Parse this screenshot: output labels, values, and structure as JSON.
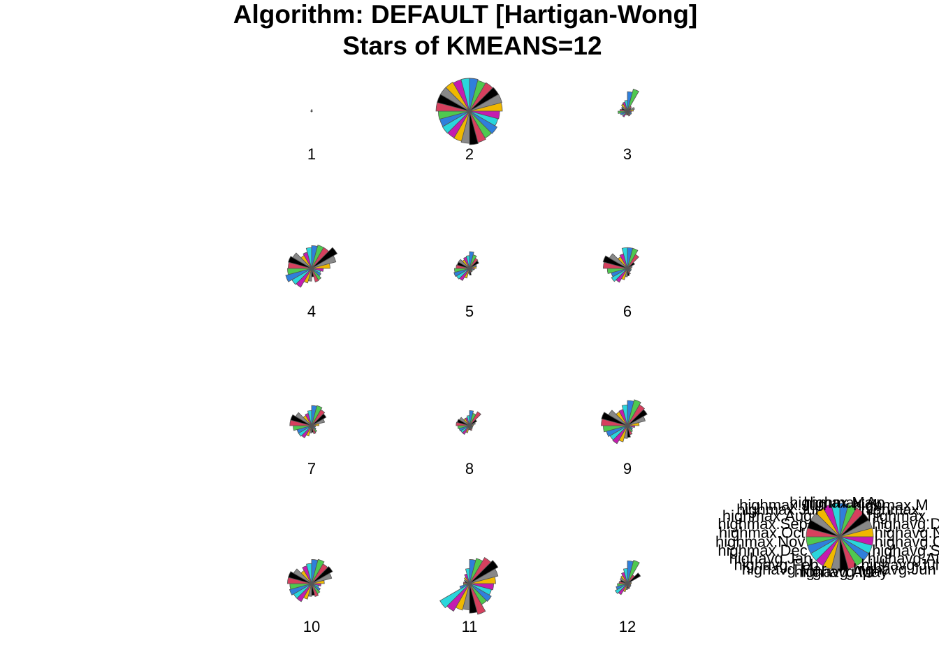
{
  "chart_data": {
    "type": "stars",
    "title": "Algorithm: DEFAULT [Hartigan-Wong]",
    "subtitle": "Stars of KMEANS=12",
    "variables": [
      "highmax.Apr",
      "highmax.Mar",
      "highmax.Feb",
      "highmax.Jan",
      "highavg.Dec",
      "highavg.Nov",
      "highavg.Oct",
      "highavg.Sep",
      "highavg.Aug",
      "highavg.Jul",
      "highavg.Jun",
      "highavg.May",
      "highavg.Apr",
      "highavg.Mar",
      "highavg.Feb",
      "highavg.Jan",
      "highmax.Dec",
      "highmax.Nov",
      "highmax.Oct",
      "highmax.Sep",
      "highmax.Aug",
      "highmax.Jul",
      "highmax.Jun",
      "highmax.May"
    ],
    "colors": [
      "#2f7fdc",
      "#4fc94f",
      "#d6405e",
      "#000000",
      "#888888",
      "#f0b800",
      "#c41cb0",
      "#2ad6dc"
    ],
    "segment_border": "#555555",
    "clusters": [
      {
        "label": "1",
        "values": [
          0.05,
          0.03,
          0.02,
          0.02,
          0.02,
          0.02,
          0.02,
          0.02,
          0.02,
          0.02,
          0.02,
          0.02,
          0.02,
          0.02,
          0.02,
          0.02,
          0.02,
          0.02,
          0.02,
          0.02,
          0.02,
          0.02,
          0.02,
          0.02
        ]
      },
      {
        "label": "2",
        "values": [
          0.98,
          0.95,
          0.98,
          1.0,
          1.0,
          0.98,
          0.9,
          0.88,
          0.95,
          0.93,
          0.97,
          1.0,
          0.96,
          0.93,
          0.92,
          0.93,
          0.92,
          0.93,
          1.0,
          1.0,
          1.0,
          1.0,
          0.97,
          0.98
        ]
      },
      {
        "label": "3",
        "values": [
          0.58,
          0.68,
          0.17,
          0.12,
          0.22,
          0.18,
          0.12,
          0.12,
          0.14,
          0.12,
          0.15,
          0.12,
          0.1,
          0.12,
          0.2,
          0.18,
          0.22,
          0.28,
          0.22,
          0.18,
          0.2,
          0.25,
          0.28,
          0.32
        ]
      },
      {
        "label": "4",
        "values": [
          0.68,
          0.72,
          0.72,
          0.88,
          0.75,
          0.55,
          0.35,
          0.28,
          0.32,
          0.4,
          0.42,
          0.25,
          0.38,
          0.45,
          0.65,
          0.68,
          0.8,
          0.72,
          0.7,
          0.72,
          0.65,
          0.45,
          0.5,
          0.62
        ]
      },
      {
        "label": "5",
        "values": [
          0.5,
          0.42,
          0.35,
          0.32,
          0.22,
          0.2,
          0.15,
          0.12,
          0.1,
          0.12,
          0.12,
          0.2,
          0.15,
          0.3,
          0.42,
          0.45,
          0.48,
          0.45,
          0.4,
          0.38,
          0.38,
          0.3,
          0.35,
          0.38
        ]
      },
      {
        "label": "6",
        "values": [
          0.62,
          0.62,
          0.48,
          0.25,
          0.15,
          0.12,
          0.1,
          0.12,
          0.12,
          0.12,
          0.18,
          0.22,
          0.25,
          0.35,
          0.48,
          0.55,
          0.5,
          0.6,
          0.72,
          0.75,
          0.62,
          0.4,
          0.45,
          0.62
        ]
      },
      {
        "label": "7",
        "values": [
          0.6,
          0.62,
          0.55,
          0.5,
          0.4,
          0.22,
          0.12,
          0.1,
          0.15,
          0.22,
          0.25,
          0.2,
          0.22,
          0.32,
          0.42,
          0.45,
          0.45,
          0.55,
          0.65,
          0.65,
          0.55,
          0.35,
          0.38,
          0.45
        ]
      },
      {
        "label": "8",
        "values": [
          0.45,
          0.38,
          0.48,
          0.25,
          0.18,
          0.12,
          0.1,
          0.1,
          0.1,
          0.12,
          0.15,
          0.12,
          0.12,
          0.22,
          0.3,
          0.3,
          0.32,
          0.35,
          0.4,
          0.38,
          0.35,
          0.25,
          0.25,
          0.3
        ]
      },
      {
        "label": "9",
        "values": [
          0.75,
          0.8,
          0.72,
          0.68,
          0.55,
          0.35,
          0.22,
          0.15,
          0.18,
          0.22,
          0.28,
          0.35,
          0.38,
          0.5,
          0.62,
          0.6,
          0.65,
          0.72,
          0.78,
          0.8,
          0.65,
          0.48,
          0.5,
          0.62
        ]
      },
      {
        "label": "10",
        "values": [
          0.72,
          0.75,
          0.68,
          0.72,
          0.62,
          0.38,
          0.28,
          0.22,
          0.3,
          0.35,
          0.4,
          0.35,
          0.38,
          0.48,
          0.62,
          0.62,
          0.68,
          0.65,
          0.72,
          0.72,
          0.62,
          0.45,
          0.55,
          0.6
        ]
      },
      {
        "label": "11",
        "values": [
          0.72,
          0.78,
          0.9,
          0.98,
          0.88,
          0.78,
          0.72,
          0.68,
          0.75,
          0.72,
          0.95,
          0.88,
          0.78,
          0.82,
          0.95,
          1.02,
          0.3,
          0.18,
          0.18,
          0.15,
          0.18,
          0.22,
          0.3,
          0.45
        ]
      },
      {
        "label": "12",
        "values": [
          0.68,
          0.72,
          0.3,
          0.45,
          0.12,
          0.12,
          0.1,
          0.1,
          0.12,
          0.12,
          0.15,
          0.15,
          0.18,
          0.25,
          0.38,
          0.42,
          0.35,
          0.3,
          0.25,
          0.22,
          0.25,
          0.28,
          0.35,
          0.45
        ]
      }
    ],
    "key": {
      "values": [
        1,
        1,
        1,
        1,
        1,
        1,
        1,
        1,
        1,
        1,
        1,
        1,
        1,
        1,
        1,
        1,
        1,
        1,
        1,
        1,
        1,
        1,
        1,
        1
      ],
      "labels": [
        "highmax.Apr",
        "highmax.Mar",
        "highmax.Feb",
        "highmax.Jan",
        "highavg.Dec",
        "highavg.Nov",
        "highavg.Oct",
        "highavg.Sep",
        "highavg.Aug",
        "highavg.Jul",
        "highavg.Jun",
        "highavg.May",
        "highavg.Apr",
        "highavg.Mar",
        "highavg.Feb",
        "highavg.Jan",
        "highmax.Dec",
        "highmax.Nov",
        "highmax.Oct",
        "highmax.Sep",
        "highmax.Aug",
        "highmax.Jul",
        "highmax.Jun",
        "highmax.May"
      ],
      "visible_labels": [
        "highmax.Ap",
        "highmax.M",
        "highmax.",
        "highmax.",
        "",
        "",
        "",
        "",
        "",
        "",
        "",
        "",
        "",
        "",
        "",
        "",
        "",
        "",
        "",
        "",
        "",
        "",
        "",
        ""
      ]
    }
  }
}
